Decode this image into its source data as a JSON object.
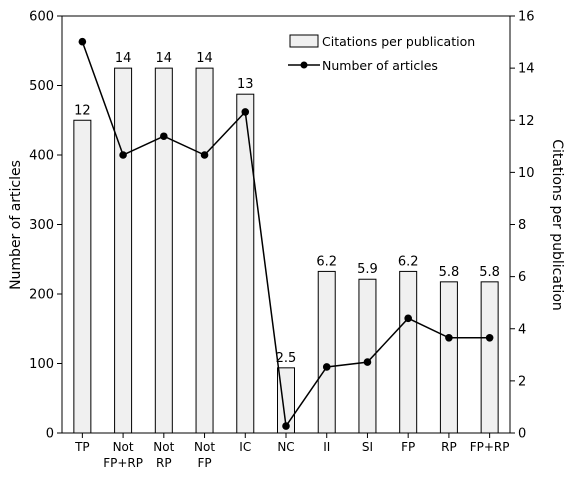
{
  "chart_data": {
    "type": "bar",
    "categories": [
      [
        "TP"
      ],
      [
        "Not",
        "FP+RP"
      ],
      [
        "Not",
        "RP"
      ],
      [
        "Not",
        "FP"
      ],
      [
        "IC"
      ],
      [
        "NC"
      ],
      [
        "II"
      ],
      [
        "SI"
      ],
      [
        "FP"
      ],
      [
        "RP"
      ],
      [
        "FP+RP"
      ]
    ],
    "series": [
      {
        "name": "Citations per publication",
        "type": "bar",
        "axis": "right",
        "values": [
          12,
          14,
          14,
          14,
          13,
          2.5,
          6.2,
          5.9,
          6.2,
          5.8,
          5.8
        ],
        "data_labels": [
          "12",
          "14",
          "14",
          "14",
          "13",
          "2.5",
          "6.2",
          "5.9",
          "6.2",
          "5.8",
          "5.8"
        ],
        "fill": "#f0f0f0",
        "stroke": "#000000"
      },
      {
        "name": "Number of articles",
        "type": "line",
        "axis": "left",
        "values": [
          563,
          400,
          427,
          400,
          462,
          10,
          95,
          102,
          165,
          137,
          137
        ],
        "color": "#000000"
      }
    ],
    "ylabel": "Number of articles",
    "y2label": "Citations per publication",
    "ylim": [
      0,
      600
    ],
    "yticks": [
      0,
      100,
      200,
      300,
      400,
      500,
      600
    ],
    "y2lim": [
      0,
      16
    ],
    "y2ticks": [
      0,
      2,
      4,
      6,
      8,
      10,
      12,
      14,
      16
    ],
    "grid": false,
    "legend": "top-right"
  }
}
